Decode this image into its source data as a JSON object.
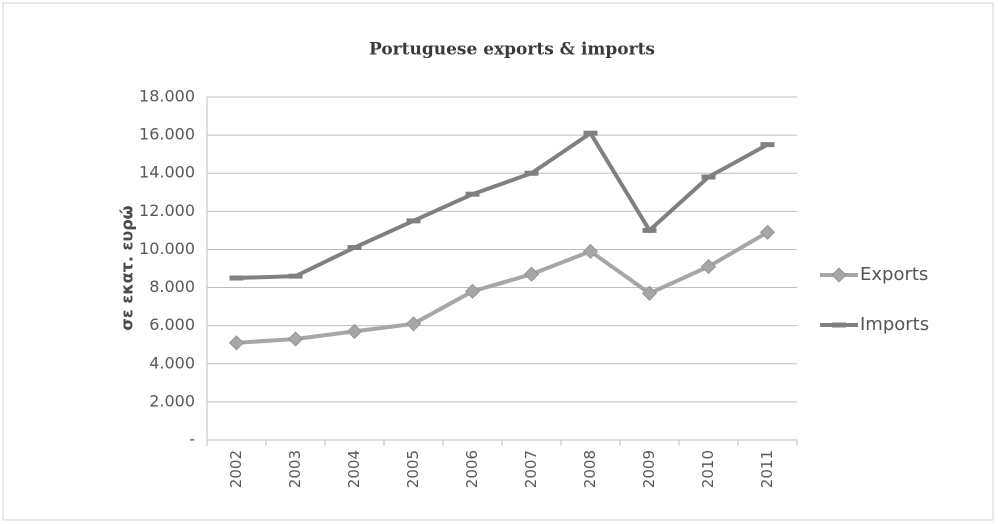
{
  "chart_data": {
    "type": "line",
    "title": "Portuguese exports & imports",
    "y_label": "σε εκατ. ευρώ",
    "categories": [
      "2002",
      "2003",
      "2004",
      "2005",
      "2006",
      "2007",
      "2008",
      "2009",
      "2010",
      "2011"
    ],
    "series": [
      {
        "name": "Exports",
        "color": "#a6a6a6",
        "marker": "diamond",
        "values": [
          5100,
          5300,
          5700,
          6100,
          7800,
          8700,
          9900,
          7700,
          9100,
          10900
        ]
      },
      {
        "name": "Imports",
        "color": "#808080",
        "marker": "dash",
        "values": [
          8500,
          8600,
          10100,
          11500,
          12900,
          14000,
          16100,
          11000,
          13800,
          15500
        ]
      }
    ],
    "ylim": [
      0,
      18000
    ],
    "yticks": [
      {
        "value": 0,
        "label": "-"
      },
      {
        "value": 2000,
        "label": "2.000"
      },
      {
        "value": 4000,
        "label": "4.000"
      },
      {
        "value": 6000,
        "label": "6.000"
      },
      {
        "value": 8000,
        "label": "8.000"
      },
      {
        "value": 10000,
        "label": "10.000"
      },
      {
        "value": 12000,
        "label": "12.000"
      },
      {
        "value": 14000,
        "label": "14.000"
      },
      {
        "value": 16000,
        "label": "16.000"
      },
      {
        "value": 18000,
        "label": "18.000"
      }
    ],
    "grid": true,
    "legend": "right"
  }
}
